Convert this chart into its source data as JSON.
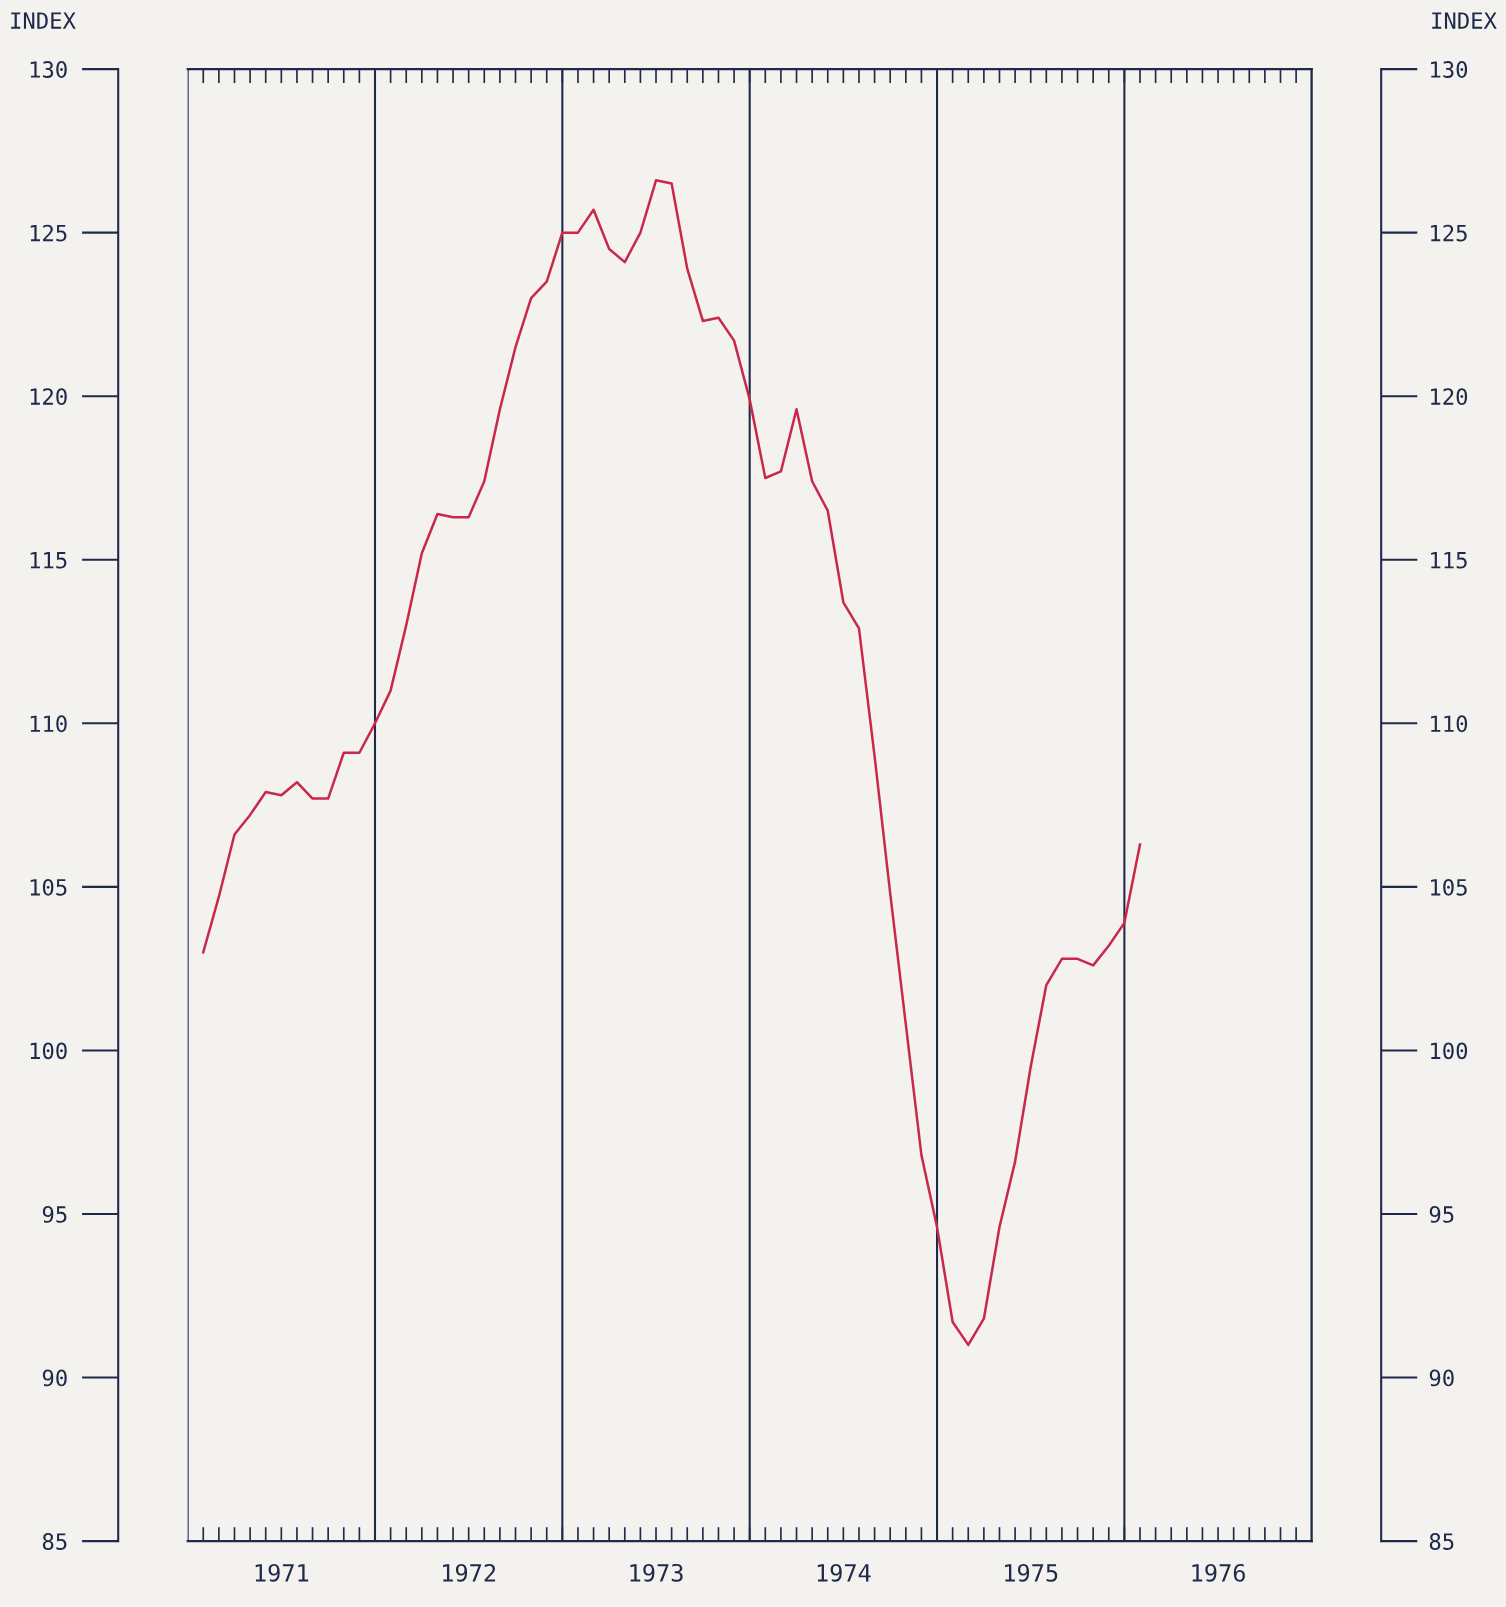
{
  "chart_data": {
    "type": "line",
    "ylabel": "INDEX",
    "y2label": "INDEX",
    "x": [
      "1971-02",
      "1971-03",
      "1971-04",
      "1971-05",
      "1971-06",
      "1971-07",
      "1971-08",
      "1971-09",
      "1971-10",
      "1971-11",
      "1971-12",
      "1972-01",
      "1972-02",
      "1972-03",
      "1972-04",
      "1972-05",
      "1972-06",
      "1972-07",
      "1972-08",
      "1972-09",
      "1972-10",
      "1972-11",
      "1972-12",
      "1973-01",
      "1973-02",
      "1973-03",
      "1973-04",
      "1973-05",
      "1973-06",
      "1973-07",
      "1973-08",
      "1973-09",
      "1973-10",
      "1973-11",
      "1973-12",
      "1974-01",
      "1974-02",
      "1974-03",
      "1974-04",
      "1974-05",
      "1974-06",
      "1974-07",
      "1974-08",
      "1974-09",
      "1974-10",
      "1974-11",
      "1974-12",
      "1975-01",
      "1975-02",
      "1975-03",
      "1975-04",
      "1975-05",
      "1975-06",
      "1975-07",
      "1975-08",
      "1975-09",
      "1975-10",
      "1975-11",
      "1975-12",
      "1976-01",
      "1976-02"
    ],
    "series": [
      {
        "color": "#c8284a",
        "values": [
          103.0,
          104.7,
          106.6,
          107.2,
          107.9,
          107.8,
          108.2,
          107.7,
          107.7,
          109.1,
          109.1,
          110.0,
          111.0,
          113.0,
          115.2,
          116.4,
          116.3,
          116.3,
          117.4,
          119.6,
          121.5,
          123.0,
          123.5,
          125.0,
          125.0,
          125.7,
          124.5,
          124.1,
          125.0,
          126.6,
          126.5,
          123.9,
          122.3,
          122.4,
          121.7,
          119.9,
          117.5,
          117.7,
          119.6,
          117.4,
          116.5,
          113.7,
          112.9,
          109.0,
          104.8,
          100.8,
          96.8,
          94.6,
          91.7,
          91.0,
          91.8,
          94.6,
          96.6,
          99.5,
          102.0,
          102.8,
          102.8,
          102.6,
          103.2,
          103.9,
          106.3
        ]
      }
    ],
    "xlim": [
      "1971-01",
      "1977-01"
    ],
    "xticks": [
      {
        "value": "1971-02",
        "label": null
      },
      {
        "value": "1971-03",
        "label": null
      },
      {
        "value": "1971-04",
        "label": null
      },
      {
        "value": "1971-05",
        "label": null
      },
      {
        "value": "1971-06",
        "label": null
      },
      {
        "value": "1971-07",
        "label": "1971"
      },
      {
        "value": "1971-08",
        "label": null
      },
      {
        "value": "1971-09",
        "label": null
      },
      {
        "value": "1971-10",
        "label": null
      },
      {
        "value": "1971-11",
        "label": null
      },
      {
        "value": "1971-12",
        "label": null
      },
      {
        "value": "1972-01",
        "label": null
      },
      {
        "value": "1972-02",
        "label": null
      },
      {
        "value": "1972-03",
        "label": null
      },
      {
        "value": "1972-04",
        "label": null
      },
      {
        "value": "1972-05",
        "label": null
      },
      {
        "value": "1972-06",
        "label": null
      },
      {
        "value": "1972-07",
        "label": "1972"
      },
      {
        "value": "1972-08",
        "label": null
      },
      {
        "value": "1972-09",
        "label": null
      },
      {
        "value": "1972-10",
        "label": null
      },
      {
        "value": "1972-11",
        "label": null
      },
      {
        "value": "1972-12",
        "label": null
      },
      {
        "value": "1973-01",
        "label": null
      },
      {
        "value": "1973-02",
        "label": null
      },
      {
        "value": "1973-03",
        "label": null
      },
      {
        "value": "1973-04",
        "label": null
      },
      {
        "value": "1973-05",
        "label": null
      },
      {
        "value": "1973-06",
        "label": null
      },
      {
        "value": "1973-07",
        "label": "1973"
      },
      {
        "value": "1973-08",
        "label": null
      },
      {
        "value": "1973-09",
        "label": null
      },
      {
        "value": "1973-10",
        "label": null
      },
      {
        "value": "1973-11",
        "label": null
      },
      {
        "value": "1973-12",
        "label": null
      },
      {
        "value": "1974-01",
        "label": null
      },
      {
        "value": "1974-02",
        "label": null
      },
      {
        "value": "1974-03",
        "label": null
      },
      {
        "value": "1974-04",
        "label": null
      },
      {
        "value": "1974-05",
        "label": null
      },
      {
        "value": "1974-06",
        "label": null
      },
      {
        "value": "1974-07",
        "label": "1974"
      },
      {
        "value": "1974-08",
        "label": null
      },
      {
        "value": "1974-09",
        "label": null
      },
      {
        "value": "1974-10",
        "label": null
      },
      {
        "value": "1974-11",
        "label": null
      },
      {
        "value": "1974-12",
        "label": null
      },
      {
        "value": "1975-01",
        "label": null
      },
      {
        "value": "1975-02",
        "label": null
      },
      {
        "value": "1975-03",
        "label": null
      },
      {
        "value": "1975-04",
        "label": null
      },
      {
        "value": "1975-05",
        "label": null
      },
      {
        "value": "1975-06",
        "label": null
      },
      {
        "value": "1975-07",
        "label": "1975"
      },
      {
        "value": "1975-08",
        "label": null
      },
      {
        "value": "1975-09",
        "label": null
      },
      {
        "value": "1975-10",
        "label": null
      },
      {
        "value": "1975-11",
        "label": null
      },
      {
        "value": "1975-12",
        "label": null
      },
      {
        "value": "1976-01",
        "label": null
      },
      {
        "value": "1976-02",
        "label": null
      },
      {
        "value": "1976-03",
        "label": null
      },
      {
        "value": "1976-04",
        "label": null
      },
      {
        "value": "1976-05",
        "label": null
      },
      {
        "value": "1976-06",
        "label": null
      },
      {
        "value": "1976-07",
        "label": "1976"
      },
      {
        "value": "1976-08",
        "label": null
      },
      {
        "value": "1976-09",
        "label": null
      },
      {
        "value": "1976-10",
        "label": null
      },
      {
        "value": "1976-11",
        "label": null
      },
      {
        "value": "1976-12",
        "label": null
      }
    ],
    "ylim": [
      85,
      130
    ],
    "yticks": [
      85,
      90,
      95,
      100,
      105,
      110,
      115,
      120,
      125,
      130
    ],
    "y2lim": [
      85,
      130
    ],
    "y2ticks": [
      85,
      90,
      95,
      100,
      105,
      110,
      115,
      120,
      125,
      130
    ],
    "ref_lines": [
      {
        "axis": "x",
        "value": "1972-01",
        "color": "#1f2a4a"
      },
      {
        "axis": "x",
        "value": "1973-01",
        "color": "#1f2a4a"
      },
      {
        "axis": "x",
        "value": "1974-01",
        "color": "#1f2a4a"
      },
      {
        "axis": "x",
        "value": "1975-01",
        "color": "#1f2a4a"
      },
      {
        "axis": "x",
        "value": "1976-01",
        "color": "#1f2a4a"
      }
    ],
    "line_style": "solid",
    "marker": "none",
    "grid": false,
    "legend": false
  }
}
